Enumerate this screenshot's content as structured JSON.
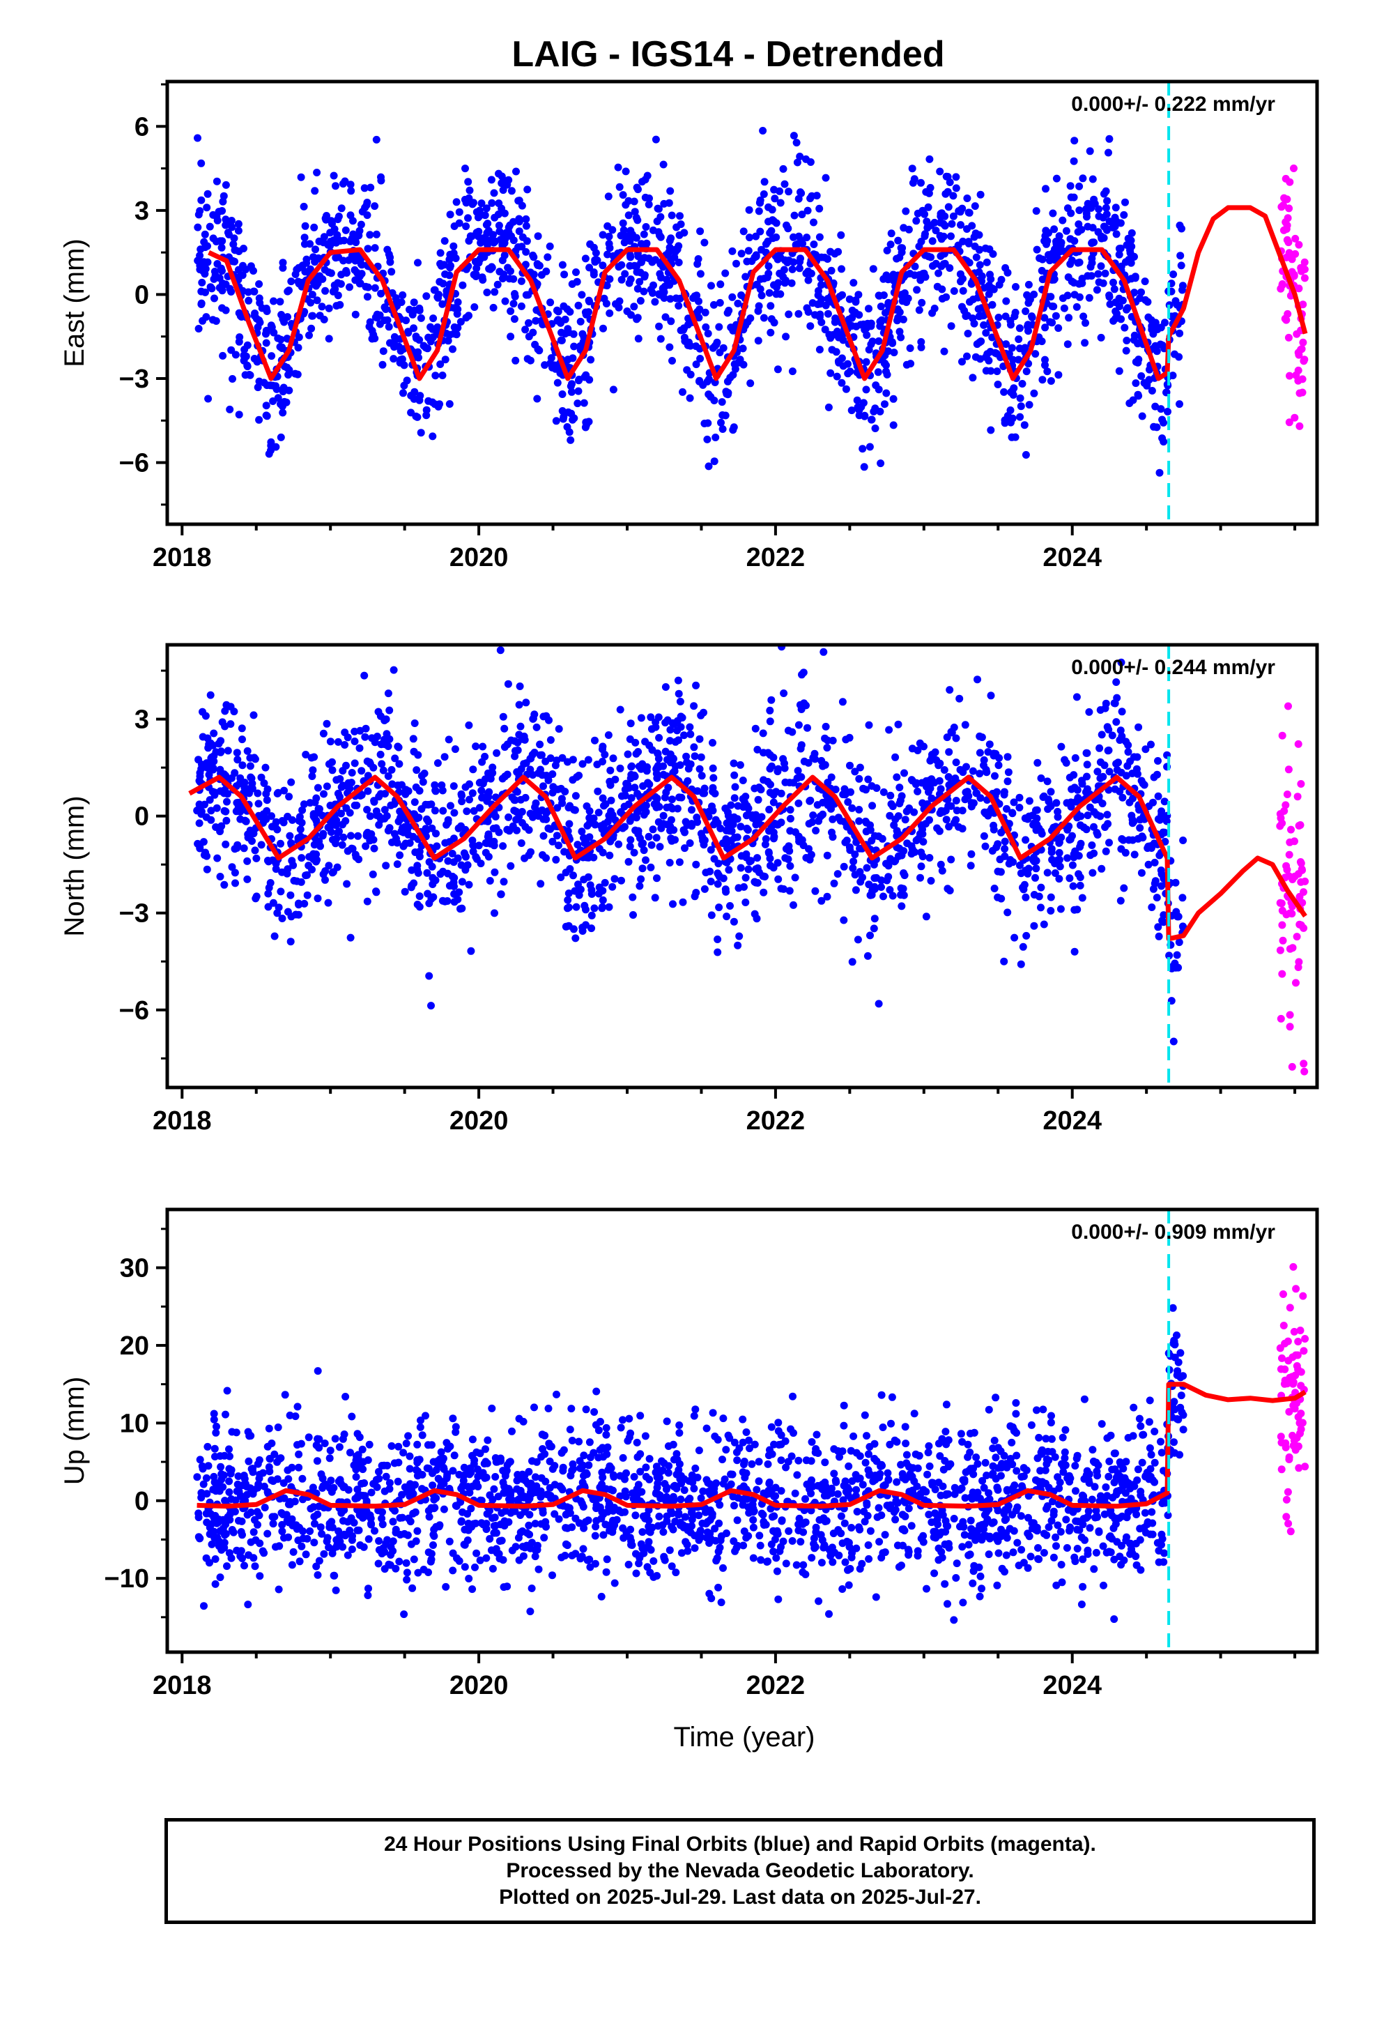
{
  "title": "LAIG - IGS14 - Detrended",
  "xlabel": "Time (year)",
  "colors": {
    "final": "#0000ff",
    "rapid": "#ff00ff",
    "model": "#ff0000",
    "break": "#00e5ee"
  },
  "footer": {
    "line1": "24 Hour Positions Using Final Orbits (blue) and Rapid Orbits (magenta).",
    "line2": "Processed by the Nevada Geodetic Laboratory.",
    "line3": "Plotted on 2025-Jul-29. Last data on 2025-Jul-27."
  },
  "chart_data": [
    {
      "type": "scatter",
      "component": "East",
      "ylabel": "East (mm)",
      "rate_label": "0.000+/- 0.222 mm/yr",
      "xlim": [
        2017.9,
        2025.65
      ],
      "ylim": [
        -8.2,
        7.6
      ],
      "xticks": [
        2018,
        2020,
        2022,
        2024
      ],
      "yticks": [
        -6,
        -3,
        0,
        3,
        6
      ],
      "yticklabels": [
        "−6",
        "−3",
        "0",
        "3",
        "6"
      ],
      "break_epoch": 2024.65,
      "final_range": [
        2018.1,
        2024.75
      ],
      "rapid_range": [
        2025.4,
        2025.57
      ],
      "noise_mm": 1.5,
      "model": {
        "seasonal": [
          {
            "x": 2018.18,
            "y": 1.5
          },
          {
            "x": 2018.3,
            "y": 1.2
          },
          {
            "x": 2018.45,
            "y": -1.0
          },
          {
            "x": 2018.6,
            "y": -3.0
          },
          {
            "x": 2018.72,
            "y": -2.0
          },
          {
            "x": 2018.85,
            "y": 0.5
          },
          {
            "x": 2019.0,
            "y": 1.5
          },
          {
            "x": 2019.2,
            "y": 1.6
          },
          {
            "x": 2019.35,
            "y": 0.5
          },
          {
            "x": 2019.6,
            "y": -3.0
          },
          {
            "x": 2019.72,
            "y": -2.0
          },
          {
            "x": 2019.85,
            "y": 0.8
          },
          {
            "x": 2020.0,
            "y": 1.6
          },
          {
            "x": 2020.2,
            "y": 1.6
          },
          {
            "x": 2020.35,
            "y": 0.5
          },
          {
            "x": 2020.6,
            "y": -3.0
          },
          {
            "x": 2020.72,
            "y": -2.0
          },
          {
            "x": 2020.85,
            "y": 0.8
          },
          {
            "x": 2021.0,
            "y": 1.6
          },
          {
            "x": 2021.2,
            "y": 1.6
          },
          {
            "x": 2021.35,
            "y": 0.5
          },
          {
            "x": 2021.6,
            "y": -3.0
          },
          {
            "x": 2021.72,
            "y": -2.0
          },
          {
            "x": 2021.85,
            "y": 0.8
          },
          {
            "x": 2022.0,
            "y": 1.6
          },
          {
            "x": 2022.2,
            "y": 1.6
          },
          {
            "x": 2022.35,
            "y": 0.5
          },
          {
            "x": 2022.6,
            "y": -3.0
          },
          {
            "x": 2022.72,
            "y": -2.0
          },
          {
            "x": 2022.85,
            "y": 0.8
          },
          {
            "x": 2023.0,
            "y": 1.6
          },
          {
            "x": 2023.2,
            "y": 1.6
          },
          {
            "x": 2023.35,
            "y": 0.5
          },
          {
            "x": 2023.6,
            "y": -3.0
          },
          {
            "x": 2023.72,
            "y": -2.0
          },
          {
            "x": 2023.85,
            "y": 0.8
          },
          {
            "x": 2024.0,
            "y": 1.6
          },
          {
            "x": 2024.2,
            "y": 1.6
          },
          {
            "x": 2024.35,
            "y": 0.5
          },
          {
            "x": 2024.58,
            "y": -3.0
          },
          {
            "x": 2024.64,
            "y": -2.8
          }
        ],
        "post_break": [
          {
            "x": 2024.65,
            "y": -1.5
          },
          {
            "x": 2024.75,
            "y": -0.5
          },
          {
            "x": 2024.85,
            "y": 1.5
          },
          {
            "x": 2024.95,
            "y": 2.7
          },
          {
            "x": 2025.05,
            "y": 3.1
          },
          {
            "x": 2025.2,
            "y": 3.1
          },
          {
            "x": 2025.3,
            "y": 2.8
          },
          {
            "x": 2025.4,
            "y": 1.4
          },
          {
            "x": 2025.5,
            "y": 0.0
          },
          {
            "x": 2025.57,
            "y": -1.4
          }
        ]
      }
    },
    {
      "type": "scatter",
      "component": "North",
      "ylabel": "North (mm)",
      "rate_label": "0.000+/- 0.244 mm/yr",
      "xlim": [
        2017.9,
        2025.65
      ],
      "ylim": [
        -8.4,
        5.3
      ],
      "xticks": [
        2018,
        2020,
        2022,
        2024
      ],
      "yticks": [
        -6,
        -3,
        0,
        3
      ],
      "yticklabels": [
        "−6",
        "−3",
        "0",
        "3"
      ],
      "break_epoch": 2024.65,
      "final_range": [
        2018.1,
        2024.75
      ],
      "rapid_range": [
        2025.4,
        2025.57
      ],
      "noise_mm": 1.4,
      "model": {
        "seasonal": [
          {
            "x": 2018.05,
            "y": 0.7
          },
          {
            "x": 2018.25,
            "y": 1.2
          },
          {
            "x": 2018.4,
            "y": 0.6
          },
          {
            "x": 2018.65,
            "y": -1.3
          },
          {
            "x": 2018.85,
            "y": -0.7
          },
          {
            "x": 2019.05,
            "y": 0.3
          },
          {
            "x": 2019.3,
            "y": 1.2
          },
          {
            "x": 2019.45,
            "y": 0.6
          },
          {
            "x": 2019.7,
            "y": -1.3
          },
          {
            "x": 2019.9,
            "y": -0.7
          },
          {
            "x": 2020.1,
            "y": 0.3
          },
          {
            "x": 2020.3,
            "y": 1.2
          },
          {
            "x": 2020.45,
            "y": 0.6
          },
          {
            "x": 2020.65,
            "y": -1.3
          },
          {
            "x": 2020.85,
            "y": -0.7
          },
          {
            "x": 2021.05,
            "y": 0.3
          },
          {
            "x": 2021.3,
            "y": 1.2
          },
          {
            "x": 2021.45,
            "y": 0.6
          },
          {
            "x": 2021.65,
            "y": -1.3
          },
          {
            "x": 2021.85,
            "y": -0.7
          },
          {
            "x": 2022.05,
            "y": 0.3
          },
          {
            "x": 2022.25,
            "y": 1.2
          },
          {
            "x": 2022.4,
            "y": 0.6
          },
          {
            "x": 2022.65,
            "y": -1.3
          },
          {
            "x": 2022.85,
            "y": -0.7
          },
          {
            "x": 2023.05,
            "y": 0.3
          },
          {
            "x": 2023.3,
            "y": 1.2
          },
          {
            "x": 2023.45,
            "y": 0.6
          },
          {
            "x": 2023.65,
            "y": -1.3
          },
          {
            "x": 2023.85,
            "y": -0.7
          },
          {
            "x": 2024.05,
            "y": 0.3
          },
          {
            "x": 2024.3,
            "y": 1.2
          },
          {
            "x": 2024.45,
            "y": 0.6
          },
          {
            "x": 2024.6,
            "y": -0.9
          },
          {
            "x": 2024.64,
            "y": -1.3
          }
        ],
        "post_break": [
          {
            "x": 2024.65,
            "y": -3.8
          },
          {
            "x": 2024.75,
            "y": -3.7
          },
          {
            "x": 2024.85,
            "y": -3.0
          },
          {
            "x": 2025.0,
            "y": -2.4
          },
          {
            "x": 2025.15,
            "y": -1.7
          },
          {
            "x": 2025.25,
            "y": -1.3
          },
          {
            "x": 2025.35,
            "y": -1.5
          },
          {
            "x": 2025.45,
            "y": -2.3
          },
          {
            "x": 2025.57,
            "y": -3.1
          }
        ]
      }
    },
    {
      "type": "scatter",
      "component": "Up",
      "ylabel": "Up (mm)",
      "rate_label": "0.000+/- 0.909 mm/yr",
      "xlim": [
        2017.9,
        2025.65
      ],
      "ylim": [
        -19.5,
        37.5
      ],
      "xticks": [
        2018,
        2020,
        2022,
        2024
      ],
      "yticks": [
        -10,
        0,
        10,
        20,
        30
      ],
      "yticklabels": [
        "−10",
        "0",
        "10",
        "20",
        "30"
      ],
      "break_epoch": 2024.65,
      "final_range": [
        2018.1,
        2024.75
      ],
      "rapid_range": [
        2025.4,
        2025.57
      ],
      "noise_mm": 5.0,
      "model": {
        "seasonal": [
          {
            "x": 2018.1,
            "y": -0.6
          },
          {
            "x": 2018.3,
            "y": -0.7
          },
          {
            "x": 2018.5,
            "y": -0.5
          },
          {
            "x": 2018.7,
            "y": 1.3
          },
          {
            "x": 2018.85,
            "y": 0.8
          },
          {
            "x": 2019.0,
            "y": -0.6
          },
          {
            "x": 2019.3,
            "y": -0.7
          },
          {
            "x": 2019.5,
            "y": -0.5
          },
          {
            "x": 2019.7,
            "y": 1.3
          },
          {
            "x": 2019.85,
            "y": 0.8
          },
          {
            "x": 2020.0,
            "y": -0.6
          },
          {
            "x": 2020.3,
            "y": -0.7
          },
          {
            "x": 2020.5,
            "y": -0.5
          },
          {
            "x": 2020.7,
            "y": 1.3
          },
          {
            "x": 2020.85,
            "y": 0.8
          },
          {
            "x": 2021.0,
            "y": -0.6
          },
          {
            "x": 2021.3,
            "y": -0.7
          },
          {
            "x": 2021.5,
            "y": -0.5
          },
          {
            "x": 2021.7,
            "y": 1.3
          },
          {
            "x": 2021.85,
            "y": 0.8
          },
          {
            "x": 2022.0,
            "y": -0.6
          },
          {
            "x": 2022.3,
            "y": -0.7
          },
          {
            "x": 2022.5,
            "y": -0.5
          },
          {
            "x": 2022.7,
            "y": 1.3
          },
          {
            "x": 2022.85,
            "y": 0.8
          },
          {
            "x": 2023.0,
            "y": -0.6
          },
          {
            "x": 2023.3,
            "y": -0.7
          },
          {
            "x": 2023.5,
            "y": -0.5
          },
          {
            "x": 2023.7,
            "y": 1.3
          },
          {
            "x": 2023.85,
            "y": 0.8
          },
          {
            "x": 2024.0,
            "y": -0.6
          },
          {
            "x": 2024.3,
            "y": -0.7
          },
          {
            "x": 2024.5,
            "y": -0.4
          },
          {
            "x": 2024.64,
            "y": 1.0
          }
        ],
        "post_break": [
          {
            "x": 2024.65,
            "y": 15.0
          },
          {
            "x": 2024.75,
            "y": 15.0
          },
          {
            "x": 2024.9,
            "y": 13.6
          },
          {
            "x": 2025.05,
            "y": 13.0
          },
          {
            "x": 2025.2,
            "y": 13.2
          },
          {
            "x": 2025.35,
            "y": 12.9
          },
          {
            "x": 2025.5,
            "y": 13.2
          },
          {
            "x": 2025.57,
            "y": 14.0
          }
        ]
      }
    }
  ]
}
